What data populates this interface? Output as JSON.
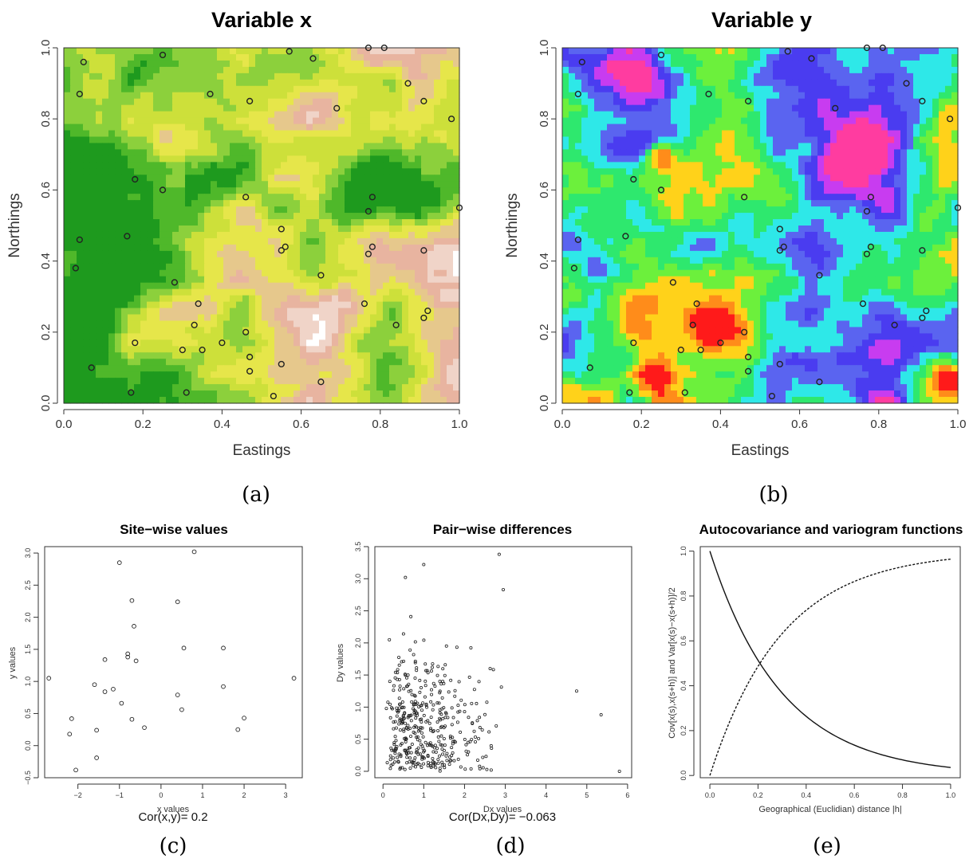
{
  "chart_data": [
    {
      "panel": "(a)",
      "type": "heatmap",
      "title": "Variable x",
      "xlabel": "Eastings",
      "ylabel": "Northings",
      "xlim": [
        0,
        1
      ],
      "ylim": [
        0,
        1
      ],
      "xticks": [
        "0.0",
        "0.2",
        "0.4",
        "0.6",
        "0.8",
        "1.0"
      ],
      "yticks": [
        "0.0",
        "0.2",
        "0.4",
        "0.6",
        "0.8",
        "1.0"
      ],
      "palette": [
        "#1e9a1e",
        "#4fb82a",
        "#8cd03c",
        "#cde03a",
        "#e6e64a",
        "#e6c88c",
        "#e8b4a0",
        "#f0d4c8",
        "#ffffff"
      ],
      "surface_note": "green band along left and middle latitudes, pale orange/white patch near (0.65, 0.2)"
    },
    {
      "panel": "(b)",
      "type": "heatmap",
      "title": "Variable y",
      "xlabel": "Eastings",
      "ylabel": "Northings",
      "xlim": [
        0,
        1
      ],
      "ylim": [
        0,
        1
      ],
      "xticks": [
        "0.0",
        "0.2",
        "0.4",
        "0.6",
        "0.8",
        "1.0"
      ],
      "yticks": [
        "0.0",
        "0.2",
        "0.4",
        "0.6",
        "0.8",
        "1.0"
      ],
      "palette": [
        "#ff1a1a",
        "#ff8c1a",
        "#ffd21a",
        "#6cf03c",
        "#2ee86e",
        "#2ee8e8",
        "#5a64f0",
        "#4a3cf0",
        "#c83cf0",
        "#ff3ca0"
      ]
    },
    {
      "panel": "(c)",
      "type": "scatter",
      "title": "Site−wise values",
      "xlabel": "x values",
      "ylabel": "y values",
      "xlim": [
        -2.8,
        3.4
      ],
      "ylim": [
        -0.5,
        3.1
      ],
      "xticks": [
        "−2",
        "−1",
        "0",
        "1",
        "2",
        "3"
      ],
      "yticks": [
        "−0.5",
        "0.0",
        "0.5",
        "1.0",
        "1.5",
        "2.0",
        "2.5",
        "3.0"
      ],
      "annotation": "Cor(x,y)= 0.2"
    },
    {
      "panel": "(d)",
      "type": "scatter",
      "title": "Pair−wise differences",
      "xlabel": "Dx values",
      "ylabel": "Dy values",
      "xlim": [
        -0.2,
        6.1
      ],
      "ylim": [
        -0.1,
        3.5
      ],
      "xticks": [
        "0",
        "1",
        "2",
        "3",
        "4",
        "5",
        "6"
      ],
      "yticks": [
        "0.0",
        "0.5",
        "1.0",
        "1.5",
        "2.0",
        "2.5",
        "3.0",
        "3.5"
      ],
      "annotation": "Cor(Dx,Dy)=  −0.063"
    },
    {
      "panel": "(e)",
      "type": "line",
      "title": "Autocovariance and variogram functions",
      "xlabel": "Geographical (Euclidian) distance |h|",
      "ylabel": "Cov[x(s),x(s+h)] and  Var[x(s)−x(s+h)]/2",
      "xlim": [
        -0.04,
        1.04
      ],
      "ylim": [
        -0.01,
        1.02
      ],
      "xticks": [
        "0.0",
        "0.2",
        "0.4",
        "0.6",
        "0.8",
        "1.0"
      ],
      "yticks": [
        "0.0",
        "0.2",
        "0.4",
        "0.6",
        "0.8",
        "1.0"
      ],
      "series": [
        {
          "style": "solid",
          "x": [
            0,
            0.1,
            0.2,
            0.3,
            0.4,
            0.5,
            0.6,
            0.7,
            0.8,
            0.9,
            1.0
          ],
          "y": [
            1.0,
            0.72,
            0.51,
            0.37,
            0.27,
            0.19,
            0.14,
            0.1,
            0.07,
            0.05,
            0.035
          ]
        },
        {
          "style": "dashed",
          "x": [
            0,
            0.1,
            0.2,
            0.3,
            0.4,
            0.5,
            0.6,
            0.7,
            0.8,
            0.9,
            1.0
          ],
          "y": [
            0.0,
            0.28,
            0.49,
            0.63,
            0.73,
            0.81,
            0.86,
            0.9,
            0.93,
            0.95,
            0.965
          ]
        }
      ]
    }
  ],
  "sites": {
    "x": [
      0.05,
      0.04,
      0.25,
      0.37,
      0.47,
      0.57,
      0.63,
      0.77,
      0.81,
      0.87,
      0.91,
      0.98,
      0.69,
      0.18,
      0.25,
      0.46,
      0.78,
      0.77,
      1.0,
      0.16,
      0.04,
      0.03,
      0.55,
      0.56,
      0.55,
      0.78,
      0.77,
      0.91,
      0.28,
      0.65,
      0.34,
      0.76,
      0.92,
      0.91,
      0.33,
      0.46,
      0.84,
      0.4,
      0.3,
      0.35,
      0.18,
      0.47,
      0.55,
      0.07,
      0.47,
      0.65,
      0.31,
      0.17,
      0.53
    ],
    "y": [
      0.96,
      0.87,
      0.98,
      0.87,
      0.85,
      0.99,
      0.97,
      1.0,
      1.0,
      0.9,
      0.85,
      0.8,
      0.83,
      0.63,
      0.6,
      0.58,
      0.58,
      0.54,
      0.55,
      0.47,
      0.46,
      0.38,
      0.43,
      0.44,
      0.49,
      0.44,
      0.42,
      0.43,
      0.34,
      0.36,
      0.28,
      0.28,
      0.26,
      0.24,
      0.22,
      0.2,
      0.22,
      0.17,
      0.15,
      0.15,
      0.17,
      0.13,
      0.11,
      0.1,
      0.09,
      0.06,
      0.03,
      0.03,
      0.02
    ]
  },
  "sitewise_points": {
    "x": [
      -2.7,
      -2.15,
      -2.2,
      -2.05,
      -1.6,
      -1.55,
      -1.55,
      -1.35,
      -1.35,
      -1.15,
      -1.0,
      -0.95,
      -0.8,
      -0.8,
      -0.7,
      -0.7,
      -0.65,
      -0.6,
      -0.4,
      0.4,
      0.4,
      0.5,
      0.55,
      0.8,
      1.5,
      1.5,
      1.85,
      2.0,
      3.2
    ],
    "y": [
      1.05,
      0.42,
      0.18,
      -0.38,
      0.95,
      0.24,
      -0.19,
      0.84,
      1.34,
      0.88,
      2.85,
      0.66,
      1.43,
      1.38,
      2.26,
      0.41,
      1.86,
      1.32,
      0.28,
      2.24,
      0.79,
      0.56,
      1.52,
      3.02,
      1.52,
      0.92,
      0.25,
      0.43,
      1.05
    ]
  },
  "pairwise_seed": 2107,
  "captions": [
    "(a)",
    "(b)",
    "(c)",
    "(d)",
    "(e)"
  ]
}
